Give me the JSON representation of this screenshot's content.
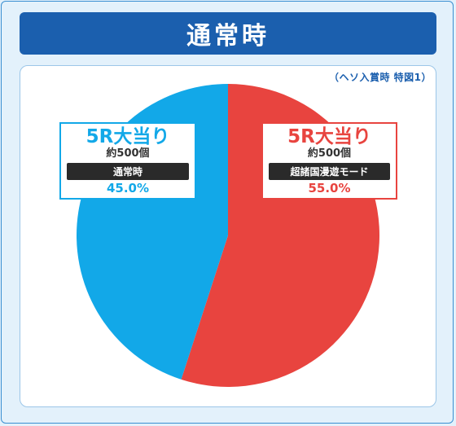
{
  "header": {
    "title": "通常時"
  },
  "note": "（ヘソ入賞時 特図1）",
  "chart_data": {
    "type": "pie",
    "title": "通常時",
    "slices": [
      {
        "label": "5R大当り",
        "prize": "約500個",
        "mode": "超諸国漫遊モード",
        "percent_label": "55.0%",
        "value": 55.0,
        "color": "#e8443f"
      },
      {
        "label": "5R大当り",
        "prize": "約500個",
        "mode": "通常時",
        "percent_label": "45.0%",
        "value": 45.0,
        "color": "#12a8e8"
      }
    ]
  }
}
